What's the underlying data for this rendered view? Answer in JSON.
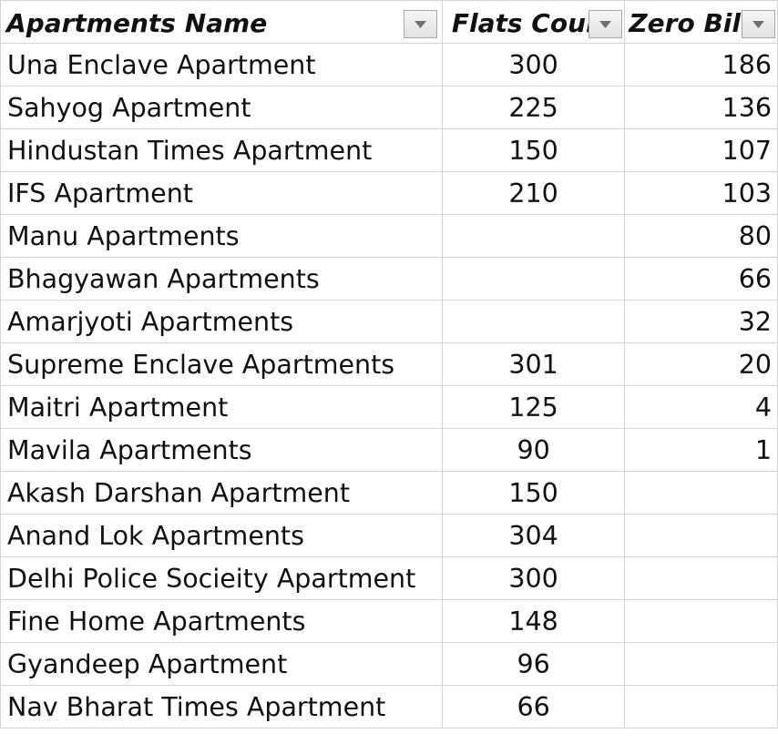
{
  "columns": {
    "name": "Apartments Name",
    "flats": "Flats Count",
    "zero": "Zero Bills"
  },
  "filter_icon": "dropdown-arrow-icon",
  "rows": [
    {
      "name": "Una Enclave Apartment",
      "flats": "300",
      "zero": "186"
    },
    {
      "name": "Sahyog Apartment",
      "flats": "225",
      "zero": "136"
    },
    {
      "name": "Hindustan Times Apartment",
      "flats": "150",
      "zero": "107"
    },
    {
      "name": "IFS Apartment",
      "flats": "210",
      "zero": "103"
    },
    {
      "name": "Manu Apartments",
      "flats": "",
      "zero": "80"
    },
    {
      "name": "Bhagyawan Apartments",
      "flats": "",
      "zero": "66"
    },
    {
      "name": "Amarjyoti Apartments",
      "flats": "",
      "zero": "32"
    },
    {
      "name": "Supreme Enclave Apartments",
      "flats": "301",
      "zero": "20"
    },
    {
      "name": "Maitri Apartment",
      "flats": "125",
      "zero": "4"
    },
    {
      "name": "Mavila Apartments",
      "flats": "90",
      "zero": "1"
    },
    {
      "name": "Akash Darshan Apartment",
      "flats": "150",
      "zero": ""
    },
    {
      "name": "Anand Lok Apartments",
      "flats": "304",
      "zero": ""
    },
    {
      "name": "Delhi Police Socieity Apartment",
      "flats": "300",
      "zero": ""
    },
    {
      "name": "Fine Home Apartments",
      "flats": "148",
      "zero": ""
    },
    {
      "name": "Gyandeep Apartment",
      "flats": "96",
      "zero": ""
    },
    {
      "name": "Nav Bharat Times Apartment",
      "flats": "66",
      "zero": ""
    }
  ]
}
